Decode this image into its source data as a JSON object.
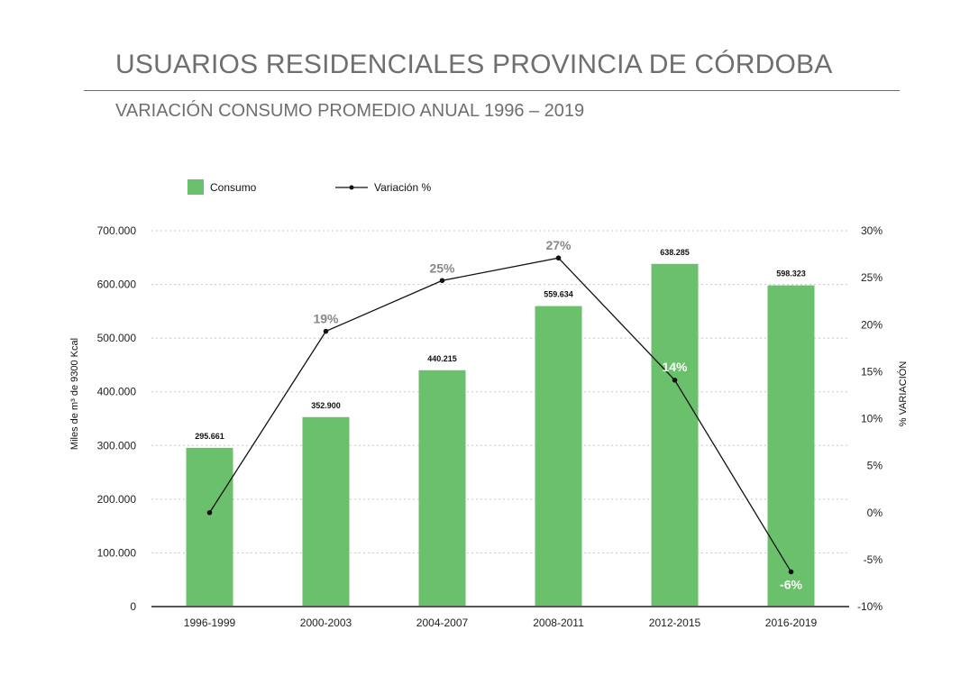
{
  "title": "USUARIOS RESIDENCIALES PROVINCIA DE CÓRDOBA",
  "subtitle": "VARIACIÓN CONSUMO PROMEDIO ANUAL 1996 – 2019",
  "colors": {
    "bar": "#6bc06b",
    "line": "#111111",
    "grid": "#c8c8c8",
    "label_gray": "#888888",
    "label_white": "#ffffff"
  },
  "chart_data": {
    "type": "bar",
    "categories": [
      "1996-1999",
      "2000-2003",
      "2004-2007",
      "2008-2011",
      "2012-2015",
      "2016-2019"
    ],
    "series": [
      {
        "name": "Consumo",
        "type": "bar",
        "axis": "left",
        "values": [
          295661,
          352900,
          440215,
          559634,
          638285,
          598323
        ],
        "labels": [
          "295.661",
          "352.900",
          "440.215",
          "559.634",
          "638.285",
          "598.323"
        ]
      },
      {
        "name": "Variación %",
        "type": "line",
        "axis": "right",
        "values": [
          0,
          19.3,
          24.7,
          27.1,
          14.1,
          -6.3
        ],
        "labels": [
          "",
          "19%",
          "25%",
          "27%",
          "14%",
          "-6%"
        ]
      }
    ],
    "ylabel": "Miles de m³ de 9300 Kcal",
    "y2label": "% VARIACIÓN",
    "ylim": [
      0,
      700000
    ],
    "y2lim": [
      -10,
      30
    ],
    "yticks": [
      "0",
      "100.000",
      "200.000",
      "300.000",
      "400.000",
      "500.000",
      "600.000",
      "700.000"
    ],
    "y2ticks": [
      "-10%",
      "-5%",
      "0%",
      "5%",
      "10%",
      "15%",
      "20%",
      "25%",
      "30%"
    ],
    "grid": true,
    "legend": "top-left"
  }
}
